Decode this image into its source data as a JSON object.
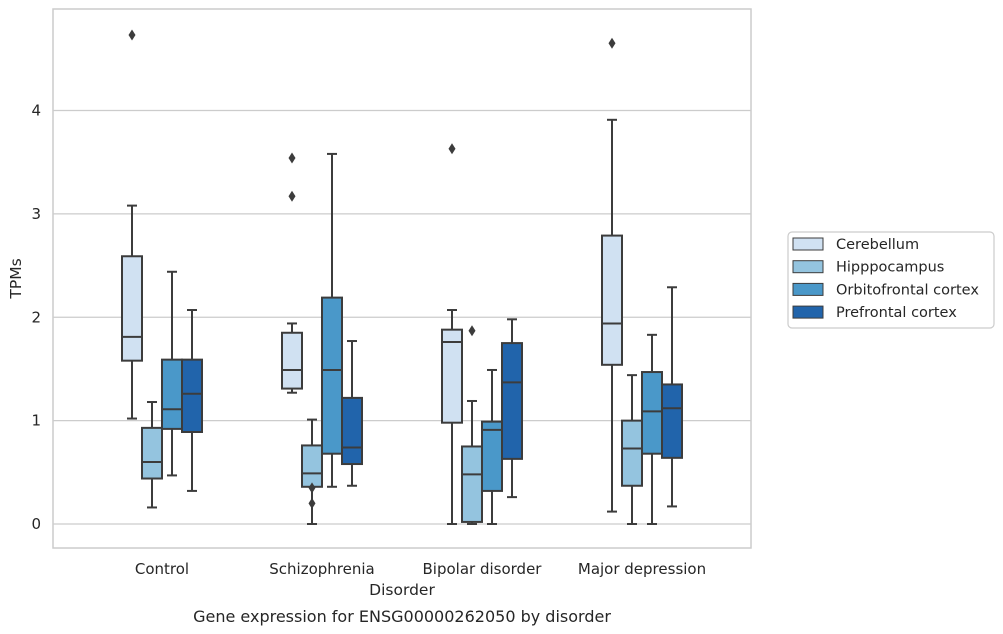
{
  "chart_data": {
    "type": "box",
    "title": "",
    "caption": "Gene expression for ENSG00000262050 by disorder",
    "xlabel": "Disorder",
    "ylabel": "TPMs",
    "ylim": [
      -0.23,
      4.98
    ],
    "yticks": [
      0,
      1,
      2,
      3,
      4
    ],
    "grid": "horizontal",
    "legend_position": "right",
    "categories": [
      "Control",
      "Schizophrenia",
      "Bipolar disorder",
      "Major depression"
    ],
    "series": [
      {
        "name": "Cerebellum",
        "color": "#d0e1f2",
        "boxes": [
          {
            "whisker_low": 1.02,
            "q1": 1.58,
            "median": 1.81,
            "q3": 2.59,
            "whisker_high": 3.08,
            "outliers": [
              4.73
            ]
          },
          {
            "whisker_low": 1.27,
            "q1": 1.31,
            "median": 1.49,
            "q3": 1.85,
            "whisker_high": 1.94,
            "outliers": [
              3.54,
              3.17
            ]
          },
          {
            "whisker_low": 0.0,
            "q1": 0.98,
            "median": 1.76,
            "q3": 1.88,
            "whisker_high": 2.07,
            "outliers": [
              3.63
            ]
          },
          {
            "whisker_low": 0.12,
            "q1": 1.54,
            "median": 1.94,
            "q3": 2.79,
            "whisker_high": 3.91,
            "outliers": [
              4.65
            ]
          }
        ]
      },
      {
        "name": "Hipppocampus",
        "color": "#94c4df",
        "boxes": [
          {
            "whisker_low": 0.16,
            "q1": 0.44,
            "median": 0.6,
            "q3": 0.93,
            "whisker_high": 1.18,
            "outliers": []
          },
          {
            "whisker_low": 0.0,
            "q1": 0.36,
            "median": 0.49,
            "q3": 0.76,
            "whisker_high": 1.01,
            "outliers": [
              0.35,
              0.2
            ]
          },
          {
            "whisker_low": 0.0,
            "q1": 0.02,
            "median": 0.48,
            "q3": 0.75,
            "whisker_high": 1.19,
            "outliers": [
              1.87
            ]
          },
          {
            "whisker_low": 0.0,
            "q1": 0.37,
            "median": 0.73,
            "q3": 1.0,
            "whisker_high": 1.44,
            "outliers": []
          }
        ]
      },
      {
        "name": "Orbitofrontal cortex",
        "color": "#4a98c9",
        "boxes": [
          {
            "whisker_low": 0.47,
            "q1": 0.92,
            "median": 1.11,
            "q3": 1.59,
            "whisker_high": 2.44,
            "outliers": []
          },
          {
            "whisker_low": 0.36,
            "q1": 0.68,
            "median": 1.49,
            "q3": 2.19,
            "whisker_high": 3.58,
            "outliers": []
          },
          {
            "whisker_low": 0.0,
            "q1": 0.32,
            "median": 0.91,
            "q3": 0.99,
            "whisker_high": 1.49,
            "outliers": []
          },
          {
            "whisker_low": 0.0,
            "q1": 0.68,
            "median": 1.09,
            "q3": 1.47,
            "whisker_high": 1.83,
            "outliers": []
          }
        ]
      },
      {
        "name": "Prefrontal cortex",
        "color": "#2164ab",
        "boxes": [
          {
            "whisker_low": 0.32,
            "q1": 0.89,
            "median": 1.26,
            "q3": 1.59,
            "whisker_high": 2.07,
            "outliers": []
          },
          {
            "whisker_low": 0.37,
            "q1": 0.58,
            "median": 0.74,
            "q3": 1.22,
            "whisker_high": 1.77,
            "outliers": []
          },
          {
            "whisker_low": 0.26,
            "q1": 0.63,
            "median": 1.37,
            "q3": 1.75,
            "whisker_high": 1.98,
            "outliers": []
          },
          {
            "whisker_low": 0.17,
            "q1": 0.64,
            "median": 1.12,
            "q3": 1.35,
            "whisker_high": 2.29,
            "outliers": []
          }
        ]
      }
    ],
    "colors": {
      "box_edge": "#3c3c3c",
      "grid": "#cccccc",
      "frame": "#cccccc",
      "text": "#262626"
    }
  }
}
